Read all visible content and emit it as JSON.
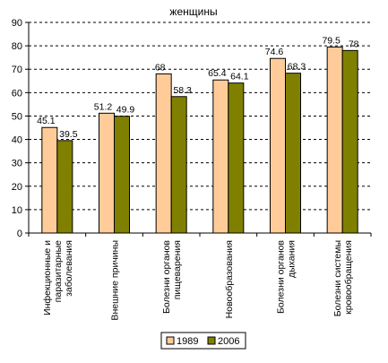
{
  "chart_data": {
    "type": "bar",
    "title": "женщины",
    "xlabel": "",
    "ylabel": "",
    "ylim": [
      0,
      90
    ],
    "yticks": [
      0,
      10,
      20,
      30,
      40,
      50,
      60,
      70,
      80,
      90
    ],
    "grid": "horizontal-dashed",
    "legend": "bottom",
    "categories": [
      [
        "Инфекционные и",
        "паразитарные",
        "заболевания"
      ],
      [
        "Внешние причины"
      ],
      [
        "Болезни органов",
        "пищеварения"
      ],
      [
        "Новообразования"
      ],
      [
        "Болезни органов",
        "дыхания"
      ],
      [
        "Болезни системы",
        "кровообращения"
      ]
    ],
    "series": [
      {
        "name": "1989",
        "color": "#ffcc99",
        "values": [
          45.1,
          51.2,
          68,
          65.4,
          74.6,
          79.5
        ]
      },
      {
        "name": "2006",
        "color": "#808000",
        "values": [
          39.5,
          49.9,
          58.3,
          64.1,
          68.3,
          78
        ]
      }
    ]
  }
}
